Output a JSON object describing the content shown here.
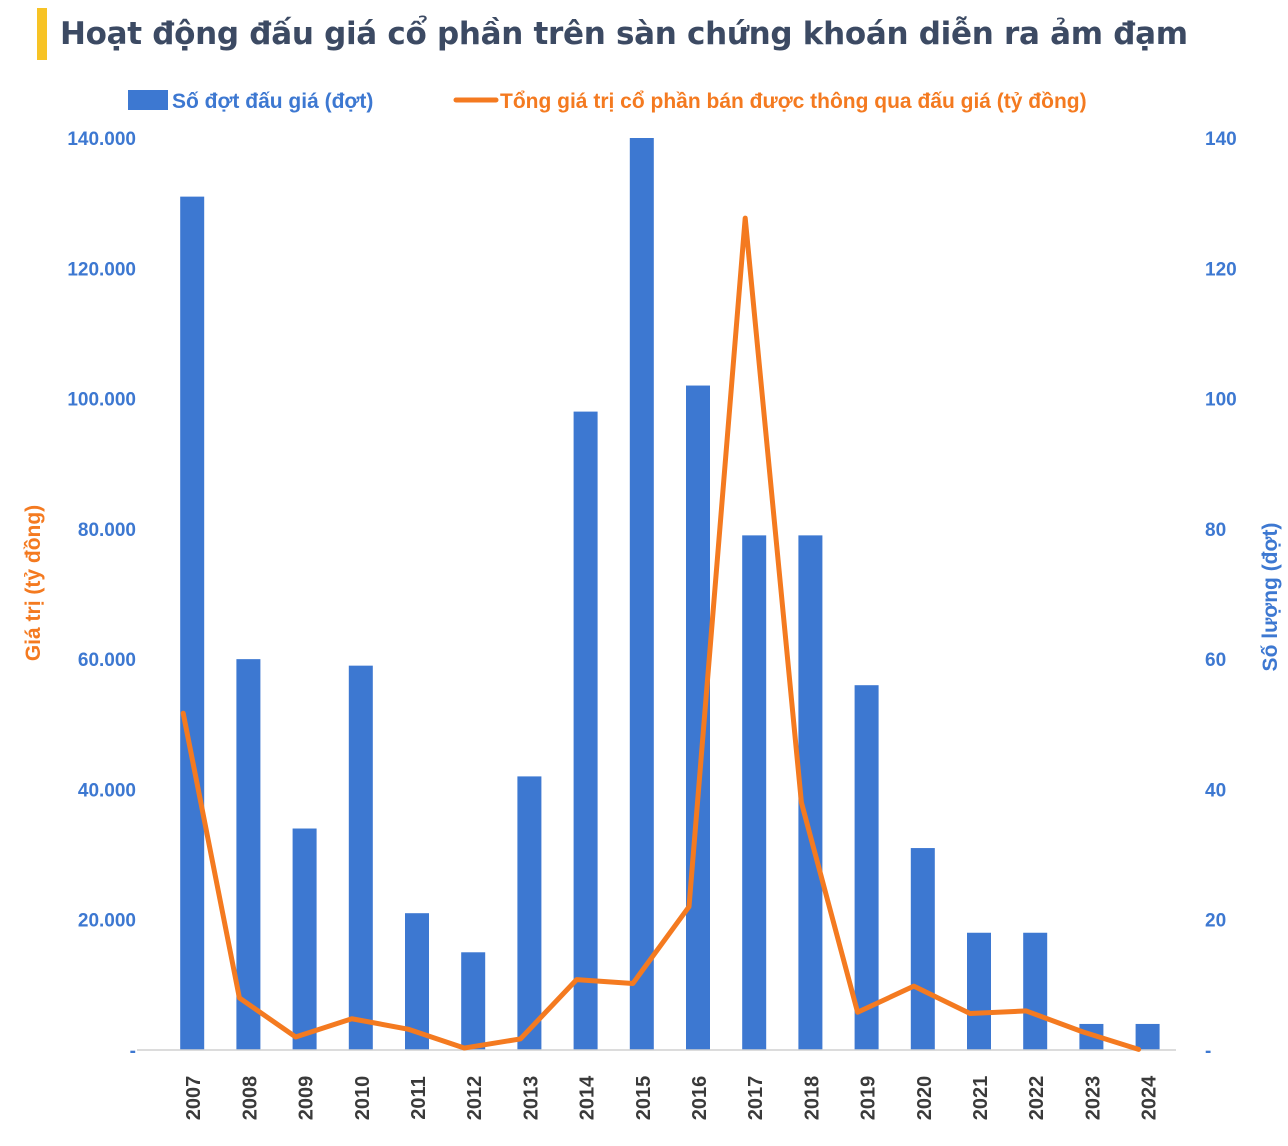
{
  "title": "Hoạt động đấu giá cổ phần trên sàn chứng khoán diễn ra ảm đạm",
  "colors": {
    "bar": "#3d78d1",
    "line": "#f47a20",
    "left_axis_text": "#f47a20",
    "tick_text": "#3d78d1",
    "year_text": "#3a3a3a",
    "title_text": "#3c4a63",
    "accent": "#f7c325"
  },
  "chart_data": {
    "type": "bar",
    "categories": [
      "2007",
      "2008",
      "2009",
      "2010",
      "2011",
      "2012",
      "2013",
      "2014",
      "2015",
      "2016",
      "2017",
      "2018",
      "2019",
      "2020",
      "2021",
      "2022",
      "2023",
      "2024"
    ],
    "series": [
      {
        "name": "Số đợt đấu giá (đợt)",
        "type": "bar",
        "axis": "right",
        "values": [
          131,
          60,
          34,
          59,
          21,
          15,
          42,
          98,
          140,
          102,
          79,
          79,
          56,
          31,
          18,
          18,
          4,
          4
        ]
      },
      {
        "name": "Tổng giá trị cổ phần bán được thông qua đấu giá (tỷ đồng)",
        "type": "line",
        "axis": "left",
        "values": [
          51700,
          8000,
          2000,
          4800,
          3200,
          300,
          1700,
          10800,
          10200,
          22000,
          127700,
          38000,
          5800,
          9800,
          5600,
          6000,
          2800,
          100
        ]
      }
    ],
    "y_left": {
      "label": "Giá trị (tỷ đồng)",
      "range": [
        0,
        140000
      ],
      "ticks": [
        "-",
        "20.000",
        "40.000",
        "60.000",
        "80.000",
        "100.000",
        "120.000",
        "140.000"
      ]
    },
    "y_right": {
      "label": "Số lượng (đợt)",
      "range": [
        0,
        140
      ],
      "ticks": [
        "-",
        "20",
        "40",
        "60",
        "80",
        "100",
        "120",
        "140"
      ]
    },
    "legend": "top",
    "grid": false
  }
}
